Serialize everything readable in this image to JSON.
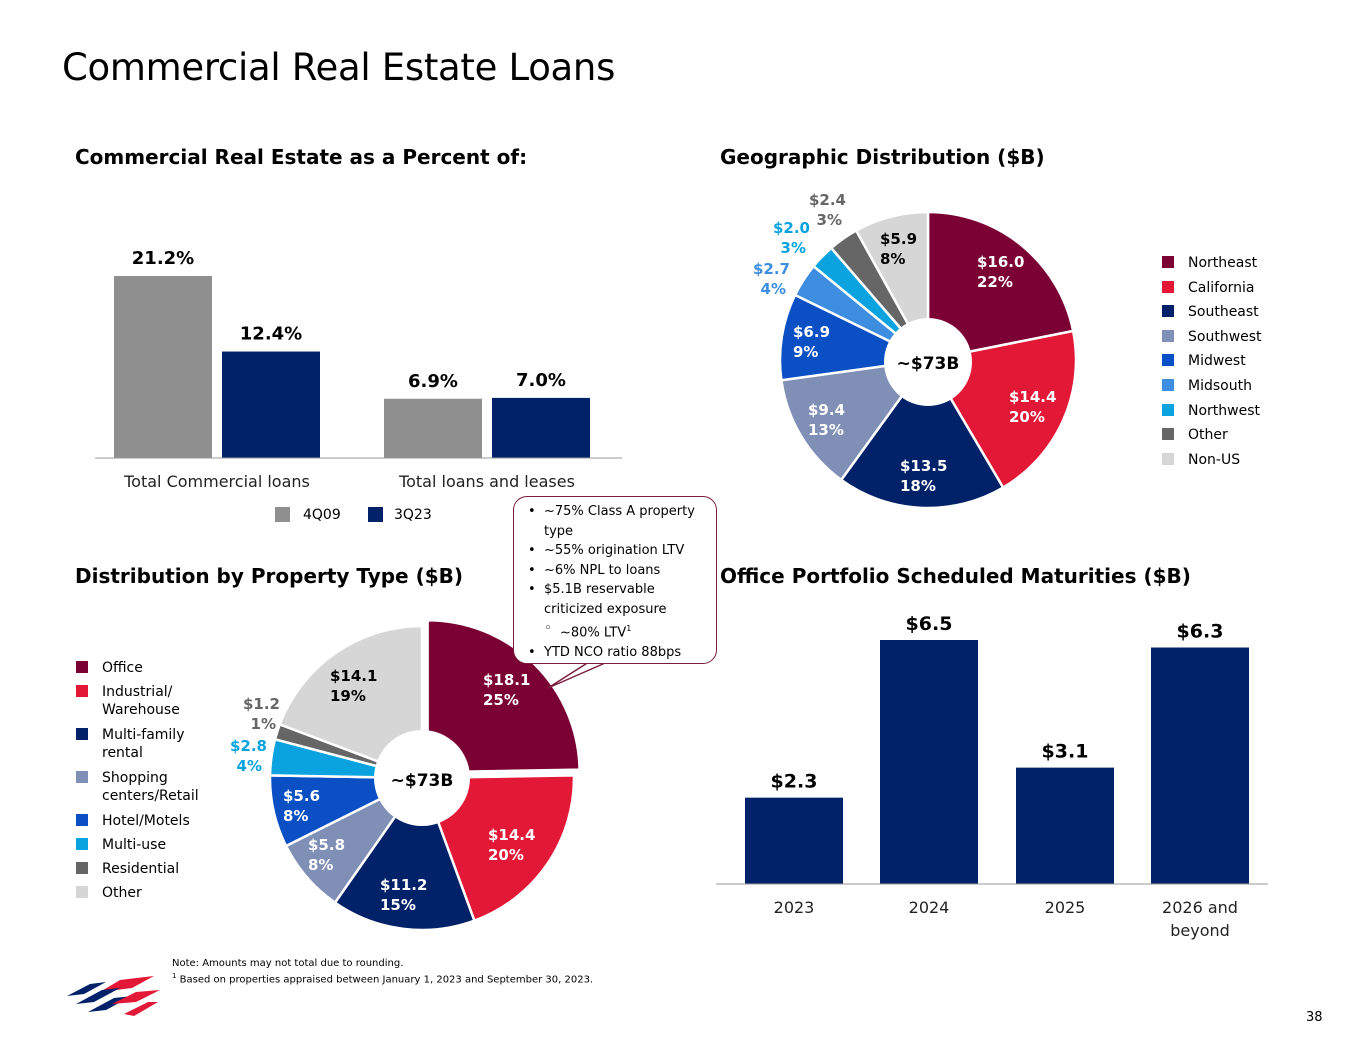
{
  "title": "Commercial Real Estate Loans",
  "page_number": "38",
  "sections": {
    "percent": "Commercial Real Estate as a Percent of:",
    "geo": "Geographic Distribution ($B)",
    "property": "Distribution by Property Type ($B)",
    "office": "Office Portfolio Scheduled Maturities ($B)"
  },
  "callout": {
    "items": [
      {
        "text": "~75% Class A property type",
        "sub": false
      },
      {
        "text": "~55% origination LTV",
        "sub": false
      },
      {
        "text": "~6% NPL to loans",
        "sub": false
      },
      {
        "text": "$5.1B reservable criticized exposure",
        "sub": false
      },
      {
        "text": "~80% LTV",
        "sup": "1",
        "sub": true
      },
      {
        "text": "YTD NCO ratio 88bps",
        "sub": false
      }
    ]
  },
  "notes": {
    "line1": "Note: Amounts may not total due to rounding.",
    "line2_sup": "1",
    "line2": " Based on properties appraised between January 1, 2023 and September 30, 2023."
  },
  "colors": {
    "gray_bar": "#8f8f8f",
    "navy": "#012169",
    "maroon": "#7b0033",
    "red": "#e31837",
    "slate": "#7f8fb5",
    "blue": "#0a4fc4",
    "mid_blue": "#3d8ee0",
    "cyan": "#0aa3e0",
    "dark_gray": "#666666",
    "light_gray": "#d6d6d6"
  },
  "chart_data": [
    {
      "id": "cre_percent",
      "type": "bar",
      "categories": [
        "Total Commercial loans",
        "Total loans and leases"
      ],
      "series": [
        {
          "name": "4Q09",
          "values": [
            21.2,
            6.9
          ],
          "labels": [
            "21.2%",
            "6.9%"
          ],
          "color": "#8f8f8f"
        },
        {
          "name": "3Q23",
          "values": [
            12.4,
            7.0
          ],
          "labels": [
            "12.4%",
            "7.0%"
          ],
          "color": "#012169"
        }
      ],
      "ylim": [
        0,
        21.2
      ],
      "legend_position": "bottom"
    },
    {
      "id": "geographic",
      "type": "pie",
      "title": "Geographic Distribution ($B)",
      "center_label": "~$73B",
      "slices": [
        {
          "name": "Northeast",
          "value": 16.0,
          "label": "$16.0",
          "pct": "22%",
          "color": "#7b0033"
        },
        {
          "name": "California",
          "value": 14.4,
          "label": "$14.4",
          "pct": "20%",
          "color": "#e31837"
        },
        {
          "name": "Southeast",
          "value": 13.5,
          "label": "$13.5",
          "pct": "18%",
          "color": "#012169"
        },
        {
          "name": "Southwest",
          "value": 9.4,
          "label": "$9.4",
          "pct": "13%",
          "color": "#7f8fb5"
        },
        {
          "name": "Midwest",
          "value": 6.9,
          "label": "$6.9",
          "pct": "9%",
          "color": "#0a4fc4"
        },
        {
          "name": "Midsouth",
          "value": 2.7,
          "label": "$2.7",
          "pct": "4%",
          "color": "#3d8ee0"
        },
        {
          "name": "Northwest",
          "value": 2.0,
          "label": "$2.0",
          "pct": "3%",
          "color": "#0aa3e0"
        },
        {
          "name": "Other",
          "value": 2.4,
          "label": "$2.4",
          "pct": "3%",
          "color": "#666666"
        },
        {
          "name": "Non-US",
          "value": 5.9,
          "label": "$5.9",
          "pct": "8%",
          "color": "#d6d6d6"
        }
      ],
      "legend_position": "right"
    },
    {
      "id": "property_type",
      "type": "pie",
      "title": "Distribution by Property Type ($B)",
      "center_label": "~$73B",
      "slices": [
        {
          "name": "Office",
          "value": 18.1,
          "label": "$18.1",
          "pct": "25%",
          "color": "#7b0033",
          "exploded": true
        },
        {
          "name": "Industrial/ Warehouse",
          "value": 14.4,
          "label": "$14.4",
          "pct": "20%",
          "color": "#e31837"
        },
        {
          "name": "Multi-family rental",
          "value": 11.2,
          "label": "$11.2",
          "pct": "15%",
          "color": "#012169"
        },
        {
          "name": "Shopping centers/Retail",
          "value": 5.8,
          "label": "$5.8",
          "pct": "8%",
          "color": "#7f8fb5"
        },
        {
          "name": "Hotel/Motels",
          "value": 5.6,
          "label": "$5.6",
          "pct": "8%",
          "color": "#0a4fc4"
        },
        {
          "name": "Multi-use",
          "value": 2.8,
          "label": "$2.8",
          "pct": "4%",
          "color": "#0aa3e0"
        },
        {
          "name": "Residential",
          "value": 1.2,
          "label": "$1.2",
          "pct": "1%",
          "color": "#666666"
        },
        {
          "name": "Other",
          "value": 14.1,
          "label": "$14.1",
          "pct": "19%",
          "color": "#d6d6d6"
        }
      ],
      "legend_position": "left"
    },
    {
      "id": "office_maturities",
      "type": "bar",
      "title": "Office Portfolio Scheduled Maturities ($B)",
      "categories": [
        "2023",
        "2024",
        "2025",
        "2026 and beyond"
      ],
      "values": [
        2.3,
        6.5,
        3.1,
        6.3
      ],
      "labels": [
        "$2.3",
        "$6.5",
        "$3.1",
        "$6.3"
      ],
      "color": "#012169",
      "ylim": [
        0,
        6.5
      ]
    }
  ]
}
